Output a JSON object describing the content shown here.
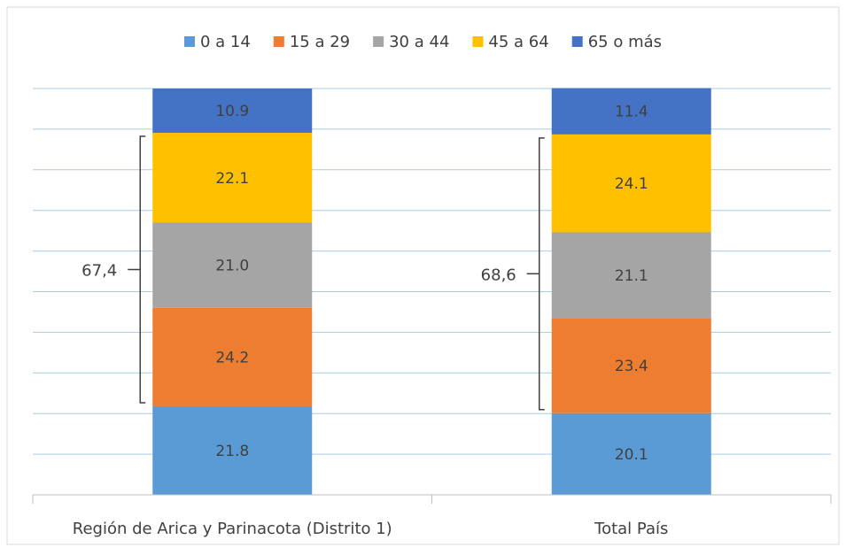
{
  "chart_data": {
    "type": "bar",
    "stacked": true,
    "categories": [
      "Región de Arica y Parinacota (Distrito 1)",
      "Total País"
    ],
    "series": [
      {
        "name": "0 a 14",
        "color": "#5B9BD5",
        "values": [
          21.8,
          20.1
        ],
        "labels": [
          "21.8",
          "20.1"
        ]
      },
      {
        "name": "15 a 29",
        "color": "#ED7D31",
        "values": [
          24.2,
          23.4
        ],
        "labels": [
          "24.2",
          "23.4"
        ]
      },
      {
        "name": "30 a 44",
        "color": "#A5A5A5",
        "values": [
          21.0,
          21.1
        ],
        "labels": [
          "21.0",
          "21.1"
        ]
      },
      {
        "name": "45 a 64",
        "color": "#FFC000",
        "values": [
          22.1,
          24.1
        ],
        "labels": [
          "22.1",
          "24.1"
        ]
      },
      {
        "name": "65 o más",
        "color": "#4472C4",
        "values": [
          10.9,
          11.4
        ],
        "labels": [
          "10.9",
          "11.4"
        ]
      }
    ],
    "annotations": [
      {
        "category": "Región de Arica y Parinacota (Distrito 1)",
        "text": "67,4",
        "spans": [
          "15 a 29",
          "30 a 44",
          "45 a 64"
        ]
      },
      {
        "category": "Total País",
        "text": "68,6",
        "spans": [
          "15 a 29",
          "30 a 44",
          "45 a 64"
        ]
      }
    ],
    "ylim": [
      0,
      100
    ],
    "grid": true,
    "legend_position": "top",
    "title": "",
    "xlabel": "",
    "ylabel": ""
  }
}
